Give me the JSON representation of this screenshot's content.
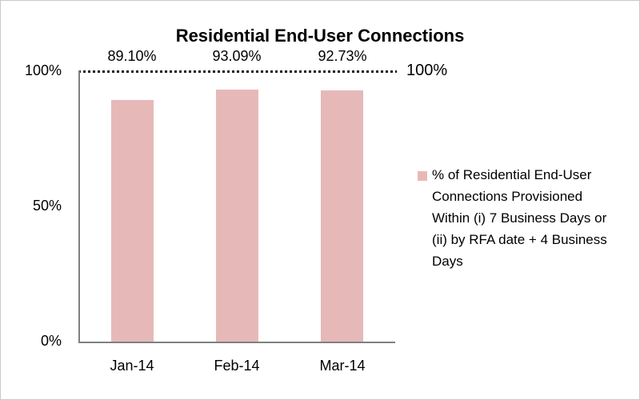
{
  "chart_data": {
    "type": "bar",
    "title": "Residential End-User Connections",
    "categories": [
      "Jan-14",
      "Feb-14",
      "Mar-14"
    ],
    "series": [
      {
        "name": "% of Residential End-User Connections Provisioned Within (i) 7 Business Days or (ii) by RFA date + 4 Business Days",
        "values": [
          89.1,
          93.09,
          92.73
        ]
      }
    ],
    "data_labels": [
      "89.10%",
      "93.09%",
      "92.73%"
    ],
    "y_tick_labels": [
      "100%",
      "50%",
      "0%"
    ],
    "ylim": [
      0,
      100
    ],
    "reference_line": {
      "value": 100,
      "label": "100%",
      "style": "dotted",
      "color": "#1a1a1a"
    },
    "legend_position": "right",
    "grid": "off",
    "colors": {
      "bar": "#e6b9b8",
      "axis": "#808080",
      "text": "#000000",
      "background": "#ffffff"
    }
  }
}
